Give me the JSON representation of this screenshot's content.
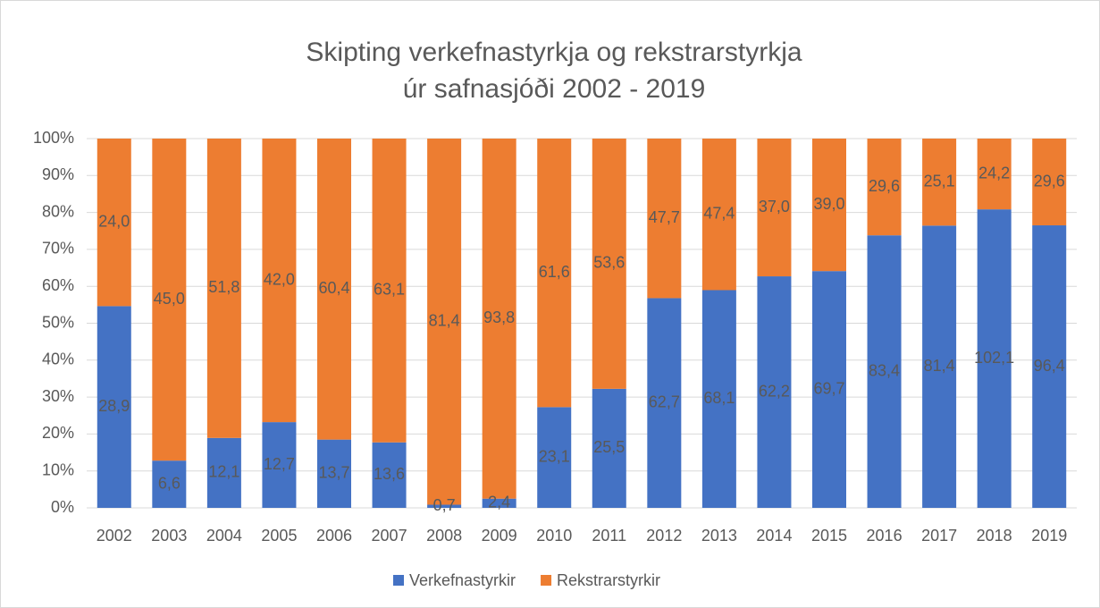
{
  "chart_data": {
    "type": "bar",
    "stacking": "percent",
    "title": [
      "Skipting verkefnastyrkja og rekstrarstyrkja",
      "úr safnasjóði 2002 - 2019"
    ],
    "categories": [
      "2002",
      "2003",
      "2004",
      "2005",
      "2006",
      "2007",
      "2008",
      "2009",
      "2010",
      "2011",
      "2012",
      "2013",
      "2014",
      "2015",
      "2016",
      "2017",
      "2018",
      "2019"
    ],
    "series": [
      {
        "name": "Verkefnastyrkir",
        "color": "#4472c4",
        "values": [
          28.9,
          6.6,
          12.1,
          12.7,
          13.7,
          13.6,
          0.7,
          2.4,
          23.1,
          25.5,
          62.7,
          68.1,
          62.2,
          69.7,
          83.4,
          81.4,
          102.1,
          96.4
        ],
        "value_labels": [
          "28,9",
          "6,6",
          "12,1",
          "12,7",
          "13,7",
          "13,6",
          "0,7",
          "2,4",
          "23,1",
          "25,5",
          "62,7",
          "68,1",
          "62,2",
          "69,7",
          "83,4",
          "81,4",
          "102,1",
          "96,4"
        ]
      },
      {
        "name": "Rekstrarstyrkir",
        "color": "#ed7d31",
        "values": [
          24.0,
          45.0,
          51.8,
          42.0,
          60.4,
          63.1,
          81.4,
          93.8,
          61.6,
          53.6,
          47.7,
          47.4,
          37.0,
          39.0,
          29.6,
          25.1,
          24.2,
          29.6
        ],
        "value_labels": [
          "24,0",
          "45,0",
          "51,8",
          "42,0",
          "60,4",
          "63,1",
          "81,4",
          "93,8",
          "61,6",
          "53,6",
          "47,7",
          "47,4",
          "37,0",
          "39,0",
          "29,6",
          "25,1",
          "24,2",
          "29,6"
        ]
      }
    ],
    "ylim": [
      0,
      100
    ],
    "yticks": [
      {
        "value": 0,
        "label": "0%"
      },
      {
        "value": 10,
        "label": "10%"
      },
      {
        "value": 20,
        "label": "20%"
      },
      {
        "value": 30,
        "label": "30%"
      },
      {
        "value": 40,
        "label": "40%"
      },
      {
        "value": 50,
        "label": "50%"
      },
      {
        "value": 60,
        "label": "60%"
      },
      {
        "value": 70,
        "label": "70%"
      },
      {
        "value": 80,
        "label": "80%"
      },
      {
        "value": 90,
        "label": "90%"
      },
      {
        "value": 100,
        "label": "100%"
      }
    ],
    "grid": true,
    "legend": "bottom"
  }
}
